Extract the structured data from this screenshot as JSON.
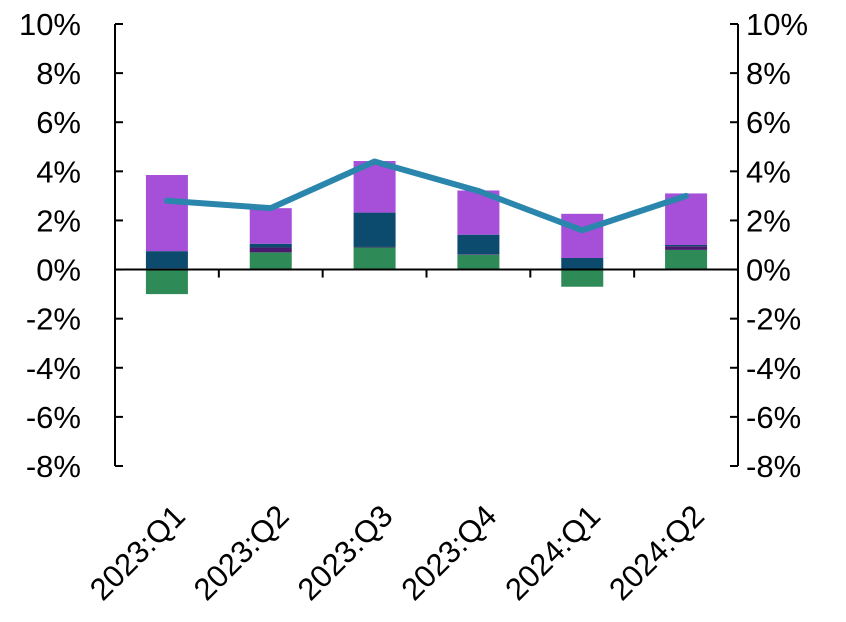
{
  "chart_data": {
    "type": "bar",
    "stacked": true,
    "categories": [
      "2023:Q1",
      "2023:Q2",
      "2023:Q3",
      "2023:Q4",
      "2024:Q1",
      "2024:Q2"
    ],
    "series": [
      {
        "color": "#2e8b57",
        "values": [
          -1.0,
          0.7,
          0.9,
          0.6,
          -0.7,
          0.8
        ]
      },
      {
        "color": "#4b1a6e",
        "values": [
          0.05,
          0.2,
          0.02,
          0.02,
          0.02,
          0.15
        ]
      },
      {
        "color": "#0c4a6e",
        "values": [
          0.7,
          0.15,
          1.4,
          0.8,
          0.45,
          0.05
        ]
      },
      {
        "color": "#a64fd8",
        "values": [
          3.1,
          1.45,
          2.1,
          1.8,
          1.8,
          2.1
        ]
      }
    ],
    "line": {
      "type": "line",
      "color": "#2a86ad",
      "values": [
        2.8,
        2.5,
        4.4,
        3.2,
        1.6,
        3.0
      ]
    },
    "ylim": [
      -8,
      10
    ],
    "yticks": [
      "10%",
      "8%",
      "6%",
      "4%",
      "2%",
      "0%",
      "-2%",
      "-4%",
      "-6%",
      "-8%"
    ],
    "ytick_values": [
      10,
      8,
      6,
      4,
      2,
      0,
      -2,
      -4,
      -6,
      -8
    ],
    "y2ticks": [
      "10%",
      "8%",
      "6%",
      "4%",
      "2%",
      "0%",
      "-2%",
      "-4%",
      "-6%",
      "-8%"
    ],
    "grid": false,
    "legend": "none"
  }
}
